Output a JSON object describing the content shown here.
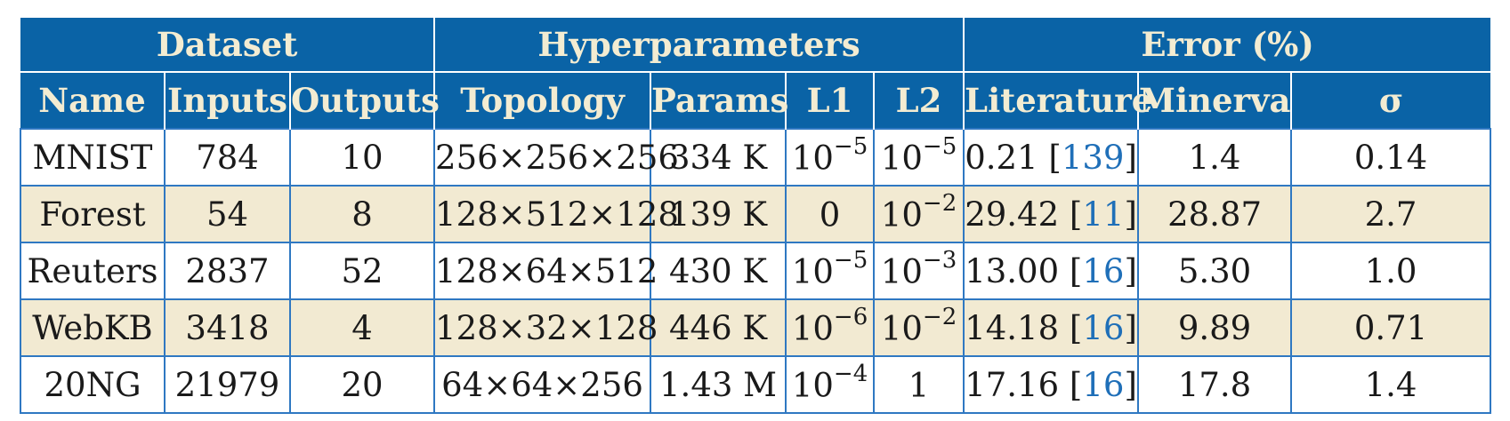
{
  "groups": {
    "dataset": "Dataset",
    "hyper": "Hyperparameters",
    "error": "Error (%)"
  },
  "columns": {
    "name": "Name",
    "inputs": "Inputs",
    "outputs": "Outputs",
    "topology": "Topology",
    "params": "Params",
    "l1": "L1",
    "l2": "L2",
    "literature": "Literature",
    "minerva": "Minerva",
    "sigma": "σ"
  },
  "rows": [
    {
      "name": "MNIST",
      "inputs": "784",
      "outputs": "10",
      "topology": "256×256×256",
      "params": "334 K",
      "l1": {
        "base": "10",
        "exp": "−5"
      },
      "l2": {
        "base": "10",
        "exp": "−5"
      },
      "lit_value": "0.21",
      "lit_ref": "139",
      "minerva": "1.4",
      "sigma": "0.14"
    },
    {
      "name": "Forest",
      "inputs": "54",
      "outputs": "8",
      "topology": "128×512×128",
      "params": "139 K",
      "l1": {
        "base": "0",
        "exp": ""
      },
      "l2": {
        "base": "10",
        "exp": "−2"
      },
      "lit_value": "29.42",
      "lit_ref": "11",
      "minerva": "28.87",
      "sigma": "2.7"
    },
    {
      "name": "Reuters",
      "inputs": "2837",
      "outputs": "52",
      "topology": "128×64×512",
      "params": "430 K",
      "l1": {
        "base": "10",
        "exp": "−5"
      },
      "l2": {
        "base": "10",
        "exp": "−3"
      },
      "lit_value": "13.00",
      "lit_ref": "16",
      "minerva": "5.30",
      "sigma": "1.0"
    },
    {
      "name": "WebKB",
      "inputs": "3418",
      "outputs": "4",
      "topology": "128×32×128",
      "params": "446 K",
      "l1": {
        "base": "10",
        "exp": "−6"
      },
      "l2": {
        "base": "10",
        "exp": "−2"
      },
      "lit_value": "14.18",
      "lit_ref": "16",
      "minerva": "9.89",
      "sigma": "0.71"
    },
    {
      "name": "20NG",
      "inputs": "21979",
      "outputs": "20",
      "topology": "64×64×256",
      "params": "1.43 M",
      "l1": {
        "base": "10",
        "exp": "−4"
      },
      "l2": {
        "base": "1",
        "exp": ""
      },
      "lit_value": "17.16",
      "lit_ref": "16",
      "minerva": "17.8",
      "sigma": "1.4"
    }
  ]
}
